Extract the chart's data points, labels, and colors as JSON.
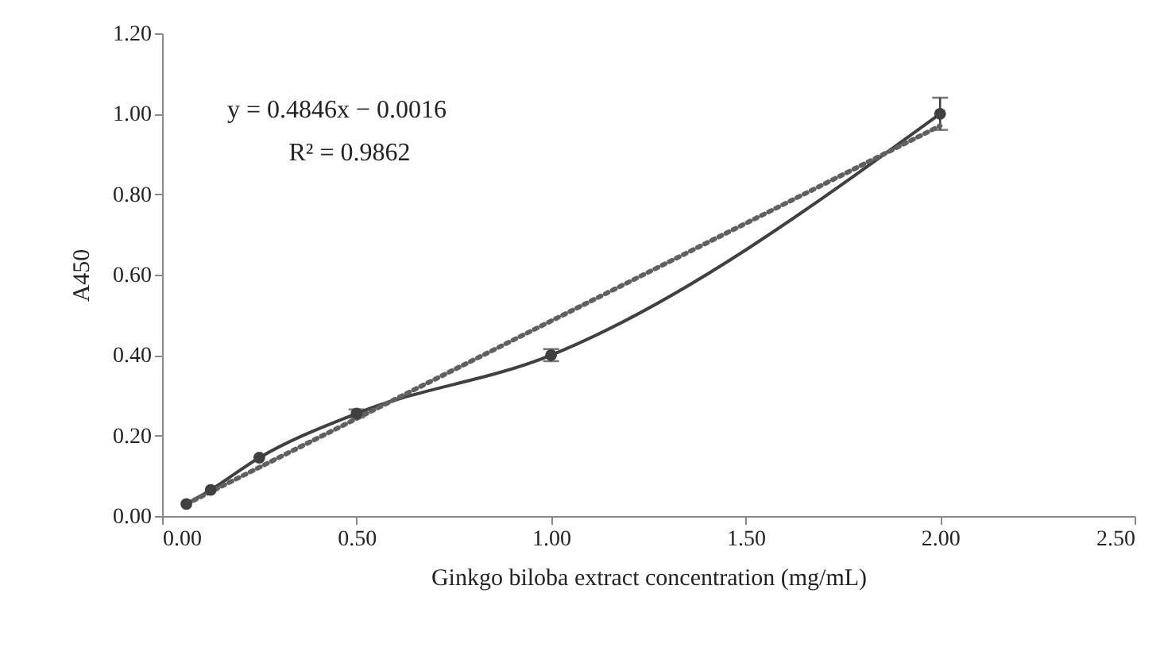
{
  "chart_data": {
    "type": "line",
    "xlabel": "Ginkgo biloba extract concentration (mg/mL)",
    "ylabel": "A450",
    "annotations": [
      "y = 0.4846x − 0.0016",
      "R² = 0.9862"
    ],
    "xlim": [
      0,
      2.5
    ],
    "ylim": [
      0,
      1.2
    ],
    "xticks": [
      {
        "value": 0,
        "label": "0.00"
      },
      {
        "value": 0.5,
        "label": "0.50"
      },
      {
        "value": 1,
        "label": "1.00"
      },
      {
        "value": 1.5,
        "label": "1.50"
      },
      {
        "value": 2,
        "label": "2.00"
      },
      {
        "value": 2.5,
        "label": "2.50"
      }
    ],
    "yticks": [
      {
        "value": 0,
        "label": "0.00"
      },
      {
        "value": 0.2,
        "label": "0.20"
      },
      {
        "value": 0.4,
        "label": "0.40"
      },
      {
        "value": 0.6,
        "label": "0.60"
      },
      {
        "value": 0.8,
        "label": "0.80"
      },
      {
        "value": 1,
        "label": "1.00"
      },
      {
        "value": 1.2,
        "label": "1.20"
      }
    ],
    "grid": false,
    "series": [
      {
        "color": "#404040",
        "marker": "circle",
        "line_style": "solid",
        "x": [
          0.0625,
          0.125,
          0.25,
          0.5,
          1,
          2
        ],
        "values": [
          0.03,
          0.065,
          0.145,
          0.255,
          0.4,
          1.0
        ],
        "errors": [
          null,
          null,
          null,
          0.01,
          0.015,
          0.04
        ]
      },
      {
        "color": "#606060",
        "marker": "none",
        "line_style": "dotted",
        "x": [
          0.0625,
          2
        ],
        "values": [
          0.03,
          0.97
        ]
      }
    ]
  }
}
